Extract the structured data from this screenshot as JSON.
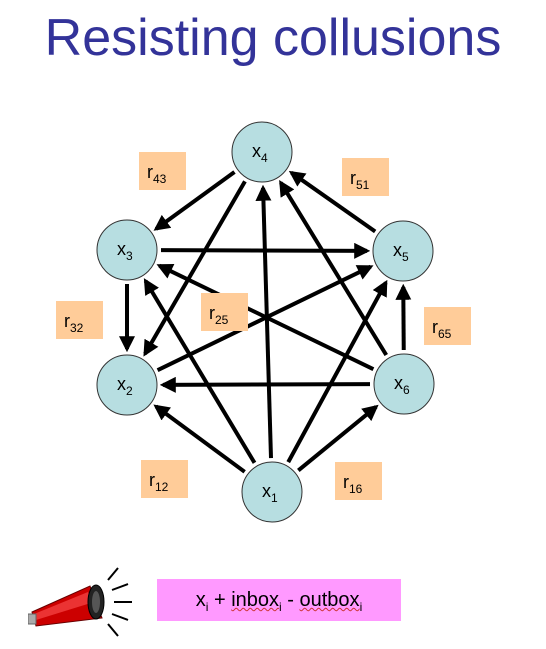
{
  "title": "Resisting collusions",
  "nodes": [
    {
      "id": "x1",
      "base": "x",
      "sub": "1"
    },
    {
      "id": "x2",
      "base": "x",
      "sub": "2"
    },
    {
      "id": "x3",
      "base": "x",
      "sub": "3"
    },
    {
      "id": "x4",
      "base": "x",
      "sub": "4"
    },
    {
      "id": "x5",
      "base": "x",
      "sub": "5"
    },
    {
      "id": "x6",
      "base": "x",
      "sub": "6"
    }
  ],
  "edges": [
    {
      "from": "x4",
      "to": "x3"
    },
    {
      "from": "x5",
      "to": "x4"
    },
    {
      "from": "x3",
      "to": "x5"
    },
    {
      "from": "x3",
      "to": "x2"
    },
    {
      "from": "x4",
      "to": "x2"
    },
    {
      "from": "x2",
      "to": "x5"
    },
    {
      "from": "x6",
      "to": "x3"
    },
    {
      "from": "x6",
      "to": "x2"
    },
    {
      "from": "x6",
      "to": "x5"
    },
    {
      "from": "x6",
      "to": "x4"
    },
    {
      "from": "x1",
      "to": "x2"
    },
    {
      "from": "x1",
      "to": "x6"
    },
    {
      "from": "x1",
      "to": "x3"
    },
    {
      "from": "x1",
      "to": "x4"
    },
    {
      "from": "x1",
      "to": "x5"
    }
  ],
  "edge_labels": [
    {
      "id": "r43",
      "base": "r",
      "sub": "43"
    },
    {
      "id": "r51",
      "base": "r",
      "sub": "51"
    },
    {
      "id": "r32",
      "base": "r",
      "sub": "32"
    },
    {
      "id": "r25",
      "base": "r",
      "sub": "25"
    },
    {
      "id": "r65",
      "base": "r",
      "sub": "65"
    },
    {
      "id": "r12",
      "base": "r",
      "sub": "12"
    },
    {
      "id": "r16",
      "base": "r",
      "sub": "16"
    }
  ],
  "formula": {
    "x": "x",
    "x_sub": "i",
    "plus": " + ",
    "inbox": "inbox",
    "inbox_sub": "i",
    "minus": " - ",
    "outbox": "outbox",
    "outbox_sub": "i"
  },
  "colors": {
    "title": "#333399",
    "node_fill": "#b7dee1",
    "label_fill": "#ffcc99",
    "formula_fill": "#ff99ff",
    "arrow": "#000000",
    "megaphone": "#cc0000"
  },
  "icons": {
    "megaphone": "megaphone-icon"
  }
}
